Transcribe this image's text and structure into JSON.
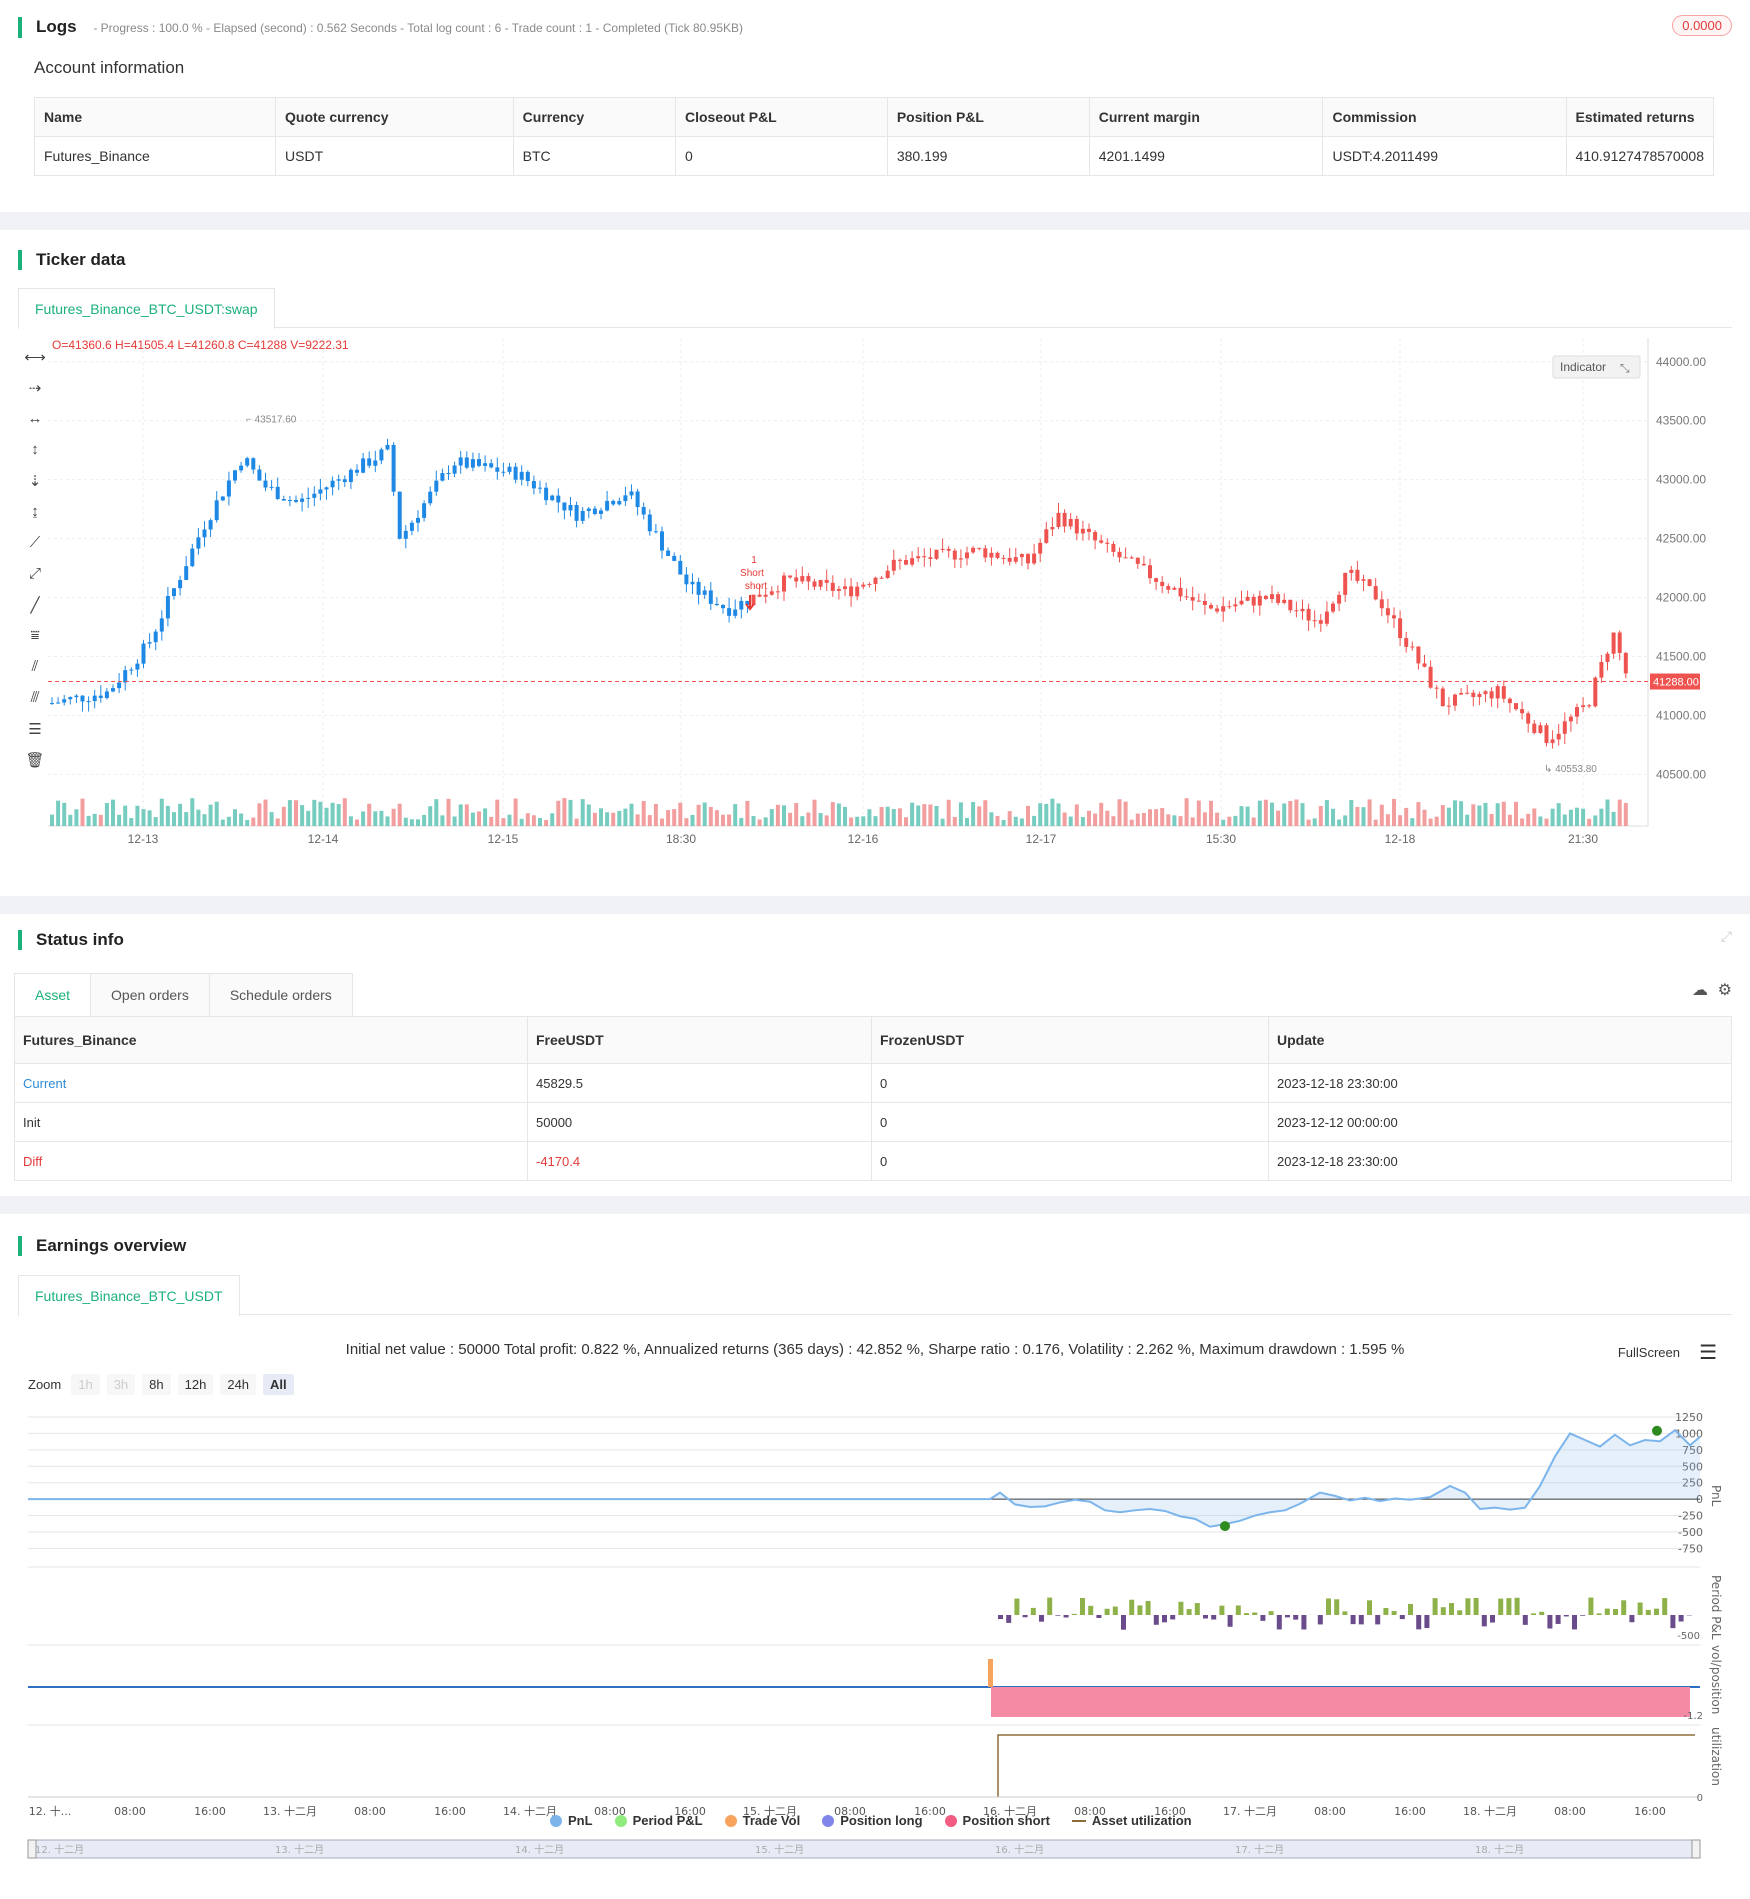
{
  "logs": {
    "title": "Logs",
    "status": "- Progress : 100.0 % - Elapsed (second) : 0.562  Seconds - Total log count : 6 - Trade count : 1 - Completed (Tick 80.95KB)",
    "badge": "0.0000"
  },
  "account": {
    "title": "Account information",
    "headers": [
      "Name",
      "Quote currency",
      "Currency",
      "Closeout P&L",
      "Position P&L",
      "Current margin",
      "Commission",
      "Estimated returns"
    ],
    "row": [
      "Futures_Binance",
      "USDT",
      "BTC",
      "0",
      "380.199",
      "4201.1499",
      "USDT:4.2011499",
      "410.9127478570008"
    ]
  },
  "ticker": {
    "title": "Ticker data",
    "tab": "Futures_Binance_BTC_USDT:swap",
    "ohlc": "O=41360.6 H=41505.4 L=41260.8 C=41288 V=9222.31",
    "indicator_btn": "Indicator",
    "price_ticks": [
      "44000.00",
      "43500.00",
      "43000.00",
      "42500.00",
      "42000.00",
      "41500.00",
      "41000.00",
      "40500.00"
    ],
    "time_ticks": [
      "12-13",
      "12-14",
      "12-15",
      "18:30",
      "12-16",
      "12-17",
      "15:30",
      "12-18",
      "21:30"
    ],
    "last_price": "41288.00",
    "high_label": "43517.60",
    "low_label": "40553.80",
    "signal_label_1": "1",
    "signal_label_2": "Short",
    "signal_label_3": "short"
  },
  "status": {
    "title": "Status info",
    "tabs": [
      "Asset",
      "Open orders",
      "Schedule orders"
    ],
    "headers": [
      "Futures_Binance",
      "FreeUSDT",
      "FrozenUSDT",
      "Update"
    ],
    "rows": [
      [
        "Current",
        "45829.5",
        "0",
        "2023-12-18 23:30:00"
      ],
      [
        "Init",
        "50000",
        "0",
        "2023-12-12 00:00:00"
      ],
      [
        "Diff",
        "-4170.4",
        "0",
        "2023-12-18 23:30:00"
      ]
    ]
  },
  "earnings": {
    "title": "Earnings overview",
    "tab": "Futures_Binance_BTC_USDT",
    "summary": "Initial net value : 50000 Total profit: 0.822 %, Annualized returns (365 days) : 42.852 %, Sharpe ratio : 0.176, Volatility : 2.262 %, Maximum drawdown : 1.595 %",
    "fullscreen": "FullScreen",
    "zoom_label": "Zoom",
    "zoom_options": [
      "1h",
      "3h",
      "8h",
      "12h",
      "24h",
      "All"
    ],
    "pnl_ticks": [
      "1250",
      "1000",
      "750",
      "500",
      "250",
      "0",
      "-250",
      "-500",
      "-750"
    ],
    "axis_titles": [
      "PnL",
      "Period P&L",
      "vol/position",
      "utilization"
    ],
    "period_tick": "-500",
    "vol_tick": "-1.2",
    "util_tick": "0",
    "time_ticks": [
      "12. 十...",
      "08:00",
      "16:00",
      "13. 十二月",
      "08:00",
      "16:00",
      "14. 十二月",
      "08:00",
      "16:00",
      "15. 十二月",
      "08:00",
      "16:00",
      "16. 十二月",
      "08:00",
      "16:00",
      "17. 十二月",
      "08:00",
      "16:00",
      "18. 十二月",
      "08:00",
      "16:00"
    ],
    "nav_ticks": [
      "12. 十二月",
      "13. 十二月",
      "14. 十二月",
      "15. 十二月",
      "16. 十二月",
      "17. 十二月",
      "18. 十二月"
    ],
    "legend": [
      "PnL",
      "Period P&L",
      "Trade Vol",
      "Position long",
      "Position short",
      "Asset utilization"
    ],
    "legend_colors": [
      "#7cb5ec",
      "#90ed7d",
      "#f7a35c",
      "#8085e9",
      "#f15c80",
      "#8d6e3a"
    ]
  },
  "chart_data": {
    "type": "candlestick",
    "y_range": [
      40300,
      44100
    ],
    "last": 41288,
    "high": 43517.6,
    "low": 40553.8
  }
}
